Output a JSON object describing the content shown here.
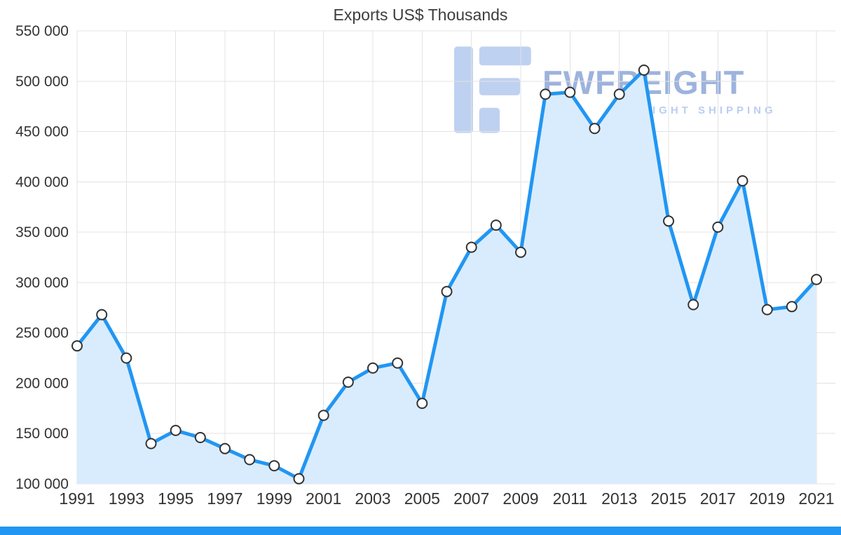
{
  "page": {
    "title": "Exports US$ Thousands"
  },
  "watermark": {
    "brand": "FWFREIGHT",
    "tagline": "FREIGHT SHIPPING",
    "icon": "fwfreight-logo",
    "brand_color": "#8ca6d8",
    "tagline_color": "#b0c6ee",
    "icon_color": "#b5c9ef"
  },
  "chart_data": {
    "type": "area",
    "title": "Exports US$ Thousands",
    "xlabel": "",
    "ylabel": "US$ Thousands",
    "x": [
      1991,
      1992,
      1993,
      1994,
      1995,
      1996,
      1997,
      1998,
      1999,
      2000,
      2001,
      2002,
      2003,
      2004,
      2005,
      2006,
      2007,
      2008,
      2009,
      2010,
      2011,
      2012,
      2013,
      2014,
      2015,
      2016,
      2017,
      2018,
      2019,
      2020,
      2021
    ],
    "series": [
      {
        "name": "Exports",
        "values": [
          237000,
          268000,
          225000,
          140000,
          153000,
          146000,
          135000,
          124000,
          118000,
          105000,
          168000,
          201000,
          215000,
          220000,
          180000,
          291000,
          335000,
          357000,
          330000,
          487000,
          489000,
          453000,
          487000,
          511000,
          361000,
          278000,
          355000,
          401000,
          273000,
          276000,
          303000
        ]
      }
    ],
    "ylim": [
      100000,
      550000
    ],
    "ytick_step": 50000,
    "xticks": [
      1991,
      1993,
      1995,
      1997,
      1999,
      2001,
      2003,
      2005,
      2007,
      2009,
      2011,
      2013,
      2015,
      2017,
      2019,
      2021
    ],
    "grid": true,
    "legend": false,
    "colors": {
      "line": "#2196f3",
      "area": "#d9ecfd",
      "marker_fill": "#ffffff",
      "marker_stroke": "#333333",
      "grid": "#e3e3e3",
      "text": "#333333"
    }
  },
  "footer": {
    "bar_color": "#2196f3"
  }
}
